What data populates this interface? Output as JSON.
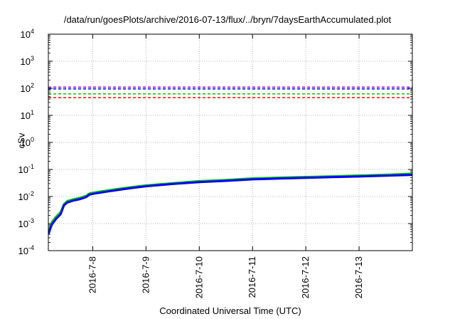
{
  "chart_data": {
    "type": "line",
    "title": "/data/run/goesPlots/archive/2016-07-13/flux/../bryn/7daysEarthAccumulated.plot",
    "xlabel": "Coordinated Universal Time (UTC)",
    "ylabel": "cSv",
    "y_scale": "log",
    "ylim": [
      0.0001,
      10000
    ],
    "xlim": [
      "2016-07-07 04:00",
      "2016-07-14 00:00"
    ],
    "grid": true,
    "x_ticks": [
      {
        "label": "2016-7-8",
        "date": "2016-07-08"
      },
      {
        "label": "2016-7-9",
        "date": "2016-07-09"
      },
      {
        "label": "2016-7-10",
        "date": "2016-07-10"
      },
      {
        "label": "2016-7-11",
        "date": "2016-07-11"
      },
      {
        "label": "2016-7-12",
        "date": "2016-07-12"
      },
      {
        "label": "2016-7-13",
        "date": "2016-07-13"
      }
    ],
    "y_ticks": [
      {
        "base": "10",
        "exp": "-4",
        "value": 0.0001
      },
      {
        "base": "10",
        "exp": "-3",
        "value": 0.001
      },
      {
        "base": "10",
        "exp": "-2",
        "value": 0.01
      },
      {
        "base": "10",
        "exp": "-1",
        "value": 0.1
      },
      {
        "base": "10",
        "exp": "0",
        "value": 1
      },
      {
        "base": "10",
        "exp": "1",
        "value": 10
      },
      {
        "base": "10",
        "exp": "2",
        "value": 100
      },
      {
        "base": "10",
        "exp": "3",
        "value": 1000
      },
      {
        "base": "10",
        "exp": "4",
        "value": 10000
      }
    ],
    "thresholds": [
      {
        "value": 110,
        "color": "#9400d3"
      },
      {
        "value": 95,
        "color": "#0000ff"
      },
      {
        "value": 62,
        "color": "#00c000"
      },
      {
        "value": 45,
        "color": "#ff0000"
      }
    ],
    "series": [
      {
        "color": "#00c000",
        "points": [
          [
            "2016-07-07 04:00",
            0.00045
          ],
          [
            "2016-07-07 05:30",
            0.0011
          ],
          [
            "2016-07-07 07:30",
            0.0018
          ],
          [
            "2016-07-07 09:30",
            0.0026
          ],
          [
            "2016-07-07 11:00",
            0.0052
          ],
          [
            "2016-07-07 12:30",
            0.0068
          ],
          [
            "2016-07-07 15:00",
            0.0078
          ],
          [
            "2016-07-07 18:00",
            0.0088
          ],
          [
            "2016-07-07 21:00",
            0.0106
          ],
          [
            "2016-07-07 22:30",
            0.013
          ],
          [
            "2016-07-08 00:00",
            0.0138
          ],
          [
            "2016-07-08 06:00",
            0.0165
          ],
          [
            "2016-07-08 12:00",
            0.0195
          ],
          [
            "2016-07-08 18:00",
            0.0225
          ],
          [
            "2016-07-09 00:00",
            0.0258
          ],
          [
            "2016-07-09 12:00",
            0.031
          ],
          [
            "2016-07-10 00:00",
            0.037
          ],
          [
            "2016-07-10 12:00",
            0.041
          ],
          [
            "2016-07-11 00:00",
            0.047
          ],
          [
            "2016-07-11 12:00",
            0.05
          ],
          [
            "2016-07-12 00:00",
            0.053
          ],
          [
            "2016-07-12 12:00",
            0.056
          ],
          [
            "2016-07-13 00:00",
            0.06
          ],
          [
            "2016-07-13 12:00",
            0.064
          ],
          [
            "2016-07-14 00:00",
            0.07
          ]
        ]
      },
      {
        "color": "#0000ff",
        "points": [
          [
            "2016-07-07 04:00",
            0.0004
          ],
          [
            "2016-07-07 05:30",
            0.0009
          ],
          [
            "2016-07-07 07:30",
            0.0015
          ],
          [
            "2016-07-07 09:30",
            0.0022
          ],
          [
            "2016-07-07 11:00",
            0.0047
          ],
          [
            "2016-07-07 12:30",
            0.006
          ],
          [
            "2016-07-07 15:00",
            0.007
          ],
          [
            "2016-07-07 18:00",
            0.0079
          ],
          [
            "2016-07-07 21:00",
            0.0095
          ],
          [
            "2016-07-07 22:30",
            0.0118
          ],
          [
            "2016-07-08 00:00",
            0.0125
          ],
          [
            "2016-07-08 06:00",
            0.015
          ],
          [
            "2016-07-08 12:00",
            0.0178
          ],
          [
            "2016-07-08 18:00",
            0.0208
          ],
          [
            "2016-07-09 00:00",
            0.024
          ],
          [
            "2016-07-09 12:00",
            0.029
          ],
          [
            "2016-07-10 00:00",
            0.034
          ],
          [
            "2016-07-10 12:00",
            0.038
          ],
          [
            "2016-07-11 00:00",
            0.043
          ],
          [
            "2016-07-11 12:00",
            0.046
          ],
          [
            "2016-07-12 00:00",
            0.049
          ],
          [
            "2016-07-12 12:00",
            0.052
          ],
          [
            "2016-07-13 00:00",
            0.055
          ],
          [
            "2016-07-13 12:00",
            0.059
          ],
          [
            "2016-07-14 00:00",
            0.063
          ]
        ]
      }
    ]
  }
}
